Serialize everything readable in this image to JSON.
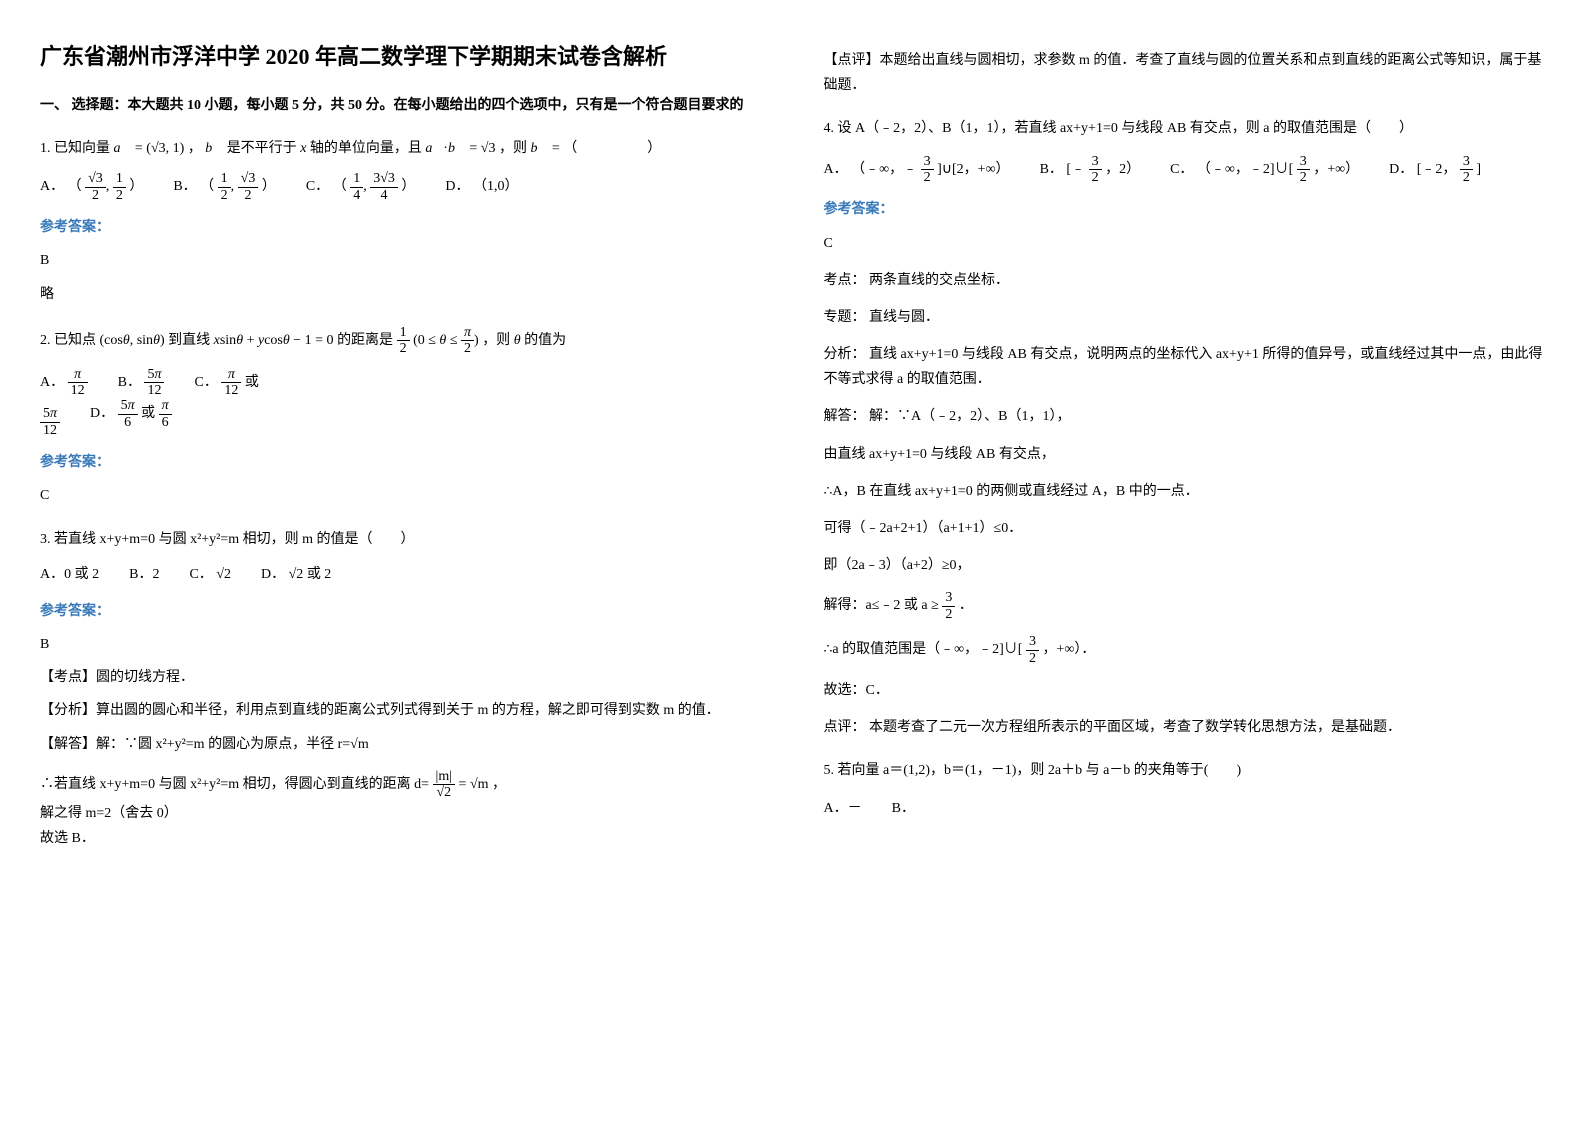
{
  "title": "广东省潮州市浮洋中学 2020 年高二数学理下学期期末试卷含解析",
  "section1_header": "一、 选择题：本大题共 10 小题，每小题 5 分，共 50 分。在每小题给出的四个选项中，只有是一个符合题目要求的",
  "q1": {
    "text_pre": "1. 已知向量",
    "text_mid1": "，",
    "text_mid2": " 是不平行于 ",
    "text_mid3": " 轴的单位向量，且",
    "text_end": "，则",
    "text_final": " = （　　　　　）",
    "opt_a_label": "A．",
    "opt_a": "（",
    "opt_a_end": "）",
    "opt_b_label": "B．",
    "opt_b": "（",
    "opt_b_end": "）",
    "opt_c_label": "C．",
    "opt_c": "（",
    "opt_c_end": "）",
    "opt_d_label": "D．",
    "opt_d": "（",
    "opt_d_val": "1,0",
    "opt_d_end": "）",
    "answer_label": "参考答案：",
    "answer": "B",
    "brief": "略"
  },
  "q2": {
    "text_pre": "2. 已知点",
    "text_mid": " 到直线 ",
    "text_mid2": " 的距离是",
    "text_end": "，则",
    "text_final": " 的值为",
    "opt_a_label": "A．",
    "opt_b_label": "B．",
    "opt_c_label": "C．",
    "opt_c_or": " 或",
    "opt_d_label": "D．",
    "opt_d_or": " 或 ",
    "answer_label": "参考答案：",
    "answer": "C"
  },
  "q3": {
    "text": "3. 若直线 x+y+m=0 与圆 x²+y²=m 相切，则 m 的值是（　　）",
    "opt_a": "A．0 或 2",
    "opt_b": "B．2",
    "opt_c_label": "C．",
    "opt_d_label": "D．",
    "opt_d_end": " 或 2",
    "answer_label": "参考答案：",
    "answer": "B",
    "point_label": "【考点】",
    "point_text": "圆的切线方程．",
    "analysis_label": "【分析】",
    "analysis_text": "算出圆的圆心和半径，利用点到直线的距离公式列式得到关于 m 的方程，解之即可得到实数 m 的值．",
    "solve_label": "【解答】",
    "solve_pre": "解：∵圆 x²+y²=m 的圆心为原点，半径 r=",
    "solve_line2_pre": "∴若直线 x+y+m=0 与圆 x²+y²=m 相切，得圆心到直线的距离 d=",
    "solve_line2_mid": " =",
    "solve_line2_end": "，",
    "solve_line3": "解之得 m=2（舍去 0）",
    "solve_line4": "故选 B．",
    "comment_label": "【点评】",
    "comment_text": "本题给出直线与圆相切，求参数 m 的值．考查了直线与圆的位置关系和点到直线的距离公式等知识，属于基础题．"
  },
  "q4": {
    "text": "4. 设 A（﹣2，2）、B（1，1），若直线 ax+y+1=0 与线段 AB 有交点，则 a 的取值范围是（　　）",
    "opt_a_label": "A．",
    "opt_a_pre": "（﹣∞，﹣",
    "opt_a_end": "]∪[2，+∞）",
    "opt_b_label": "B．",
    "opt_b_pre": "[﹣",
    "opt_b_end": "，2）",
    "opt_c_label": "C．",
    "opt_c_pre": "（﹣∞，﹣2]∪[",
    "opt_c_end": "，+∞）",
    "opt_d_label": "D．",
    "opt_d_pre": "[﹣2，",
    "opt_d_end": "]",
    "answer_label": "参考答案：",
    "answer": "C",
    "point_label": "考点：",
    "point_text": "两条直线的交点坐标．",
    "topic_label": "专题：",
    "topic_text": "直线与圆．",
    "analysis_label": "分析：",
    "analysis_text": "直线 ax+y+1=0 与线段 AB 有交点，说明两点的坐标代入 ax+y+1 所得的值异号，或直线经过其中一点，由此得不等式求得 a 的取值范围．",
    "solve_label": "解答：",
    "solve_pre": "解：∵A（﹣2，2）、B（1，1），",
    "solve_line2": "由直线 ax+y+1=0 与线段 AB 有交点，",
    "solve_line3": "∴A，B 在直线 ax+y+1=0 的两侧或直线经过 A，B 中的一点．",
    "solve_line4": "可得（﹣2a+2+1）（a+1+1）≤0．",
    "solve_line5": "即（2a﹣3）（a+2）≥0，",
    "solve_line6_pre": "解得：a≤﹣2 或 a",
    "solve_line6_end": "．",
    "solve_line7_pre": "∴a 的取值范围是（﹣∞，﹣2]∪[",
    "solve_line7_end": "，+∞）．",
    "solve_line8": "故选：C．",
    "comment_label": "点评：",
    "comment_text": "本题考查了二元一次方程组所表示的平面区域，考查了数学转化思想方法，是基础题．"
  },
  "q5": {
    "text": "5. 若向量 a＝(1,2)，b＝(1，－1)，则 2a＋b 与 a－b 的夹角等于(　　)",
    "opt_a": "A．－",
    "opt_b": "B．"
  },
  "colors": {
    "text": "#000000",
    "answer_blue": "#3a7ab8",
    "background": "#ffffff"
  }
}
